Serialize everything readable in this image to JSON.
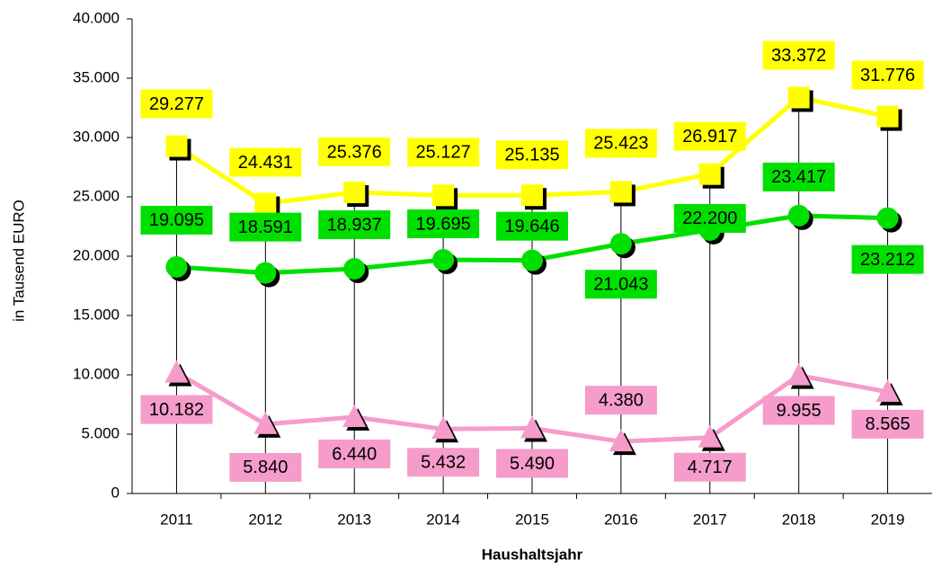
{
  "chart_data": {
    "type": "line",
    "x_label": "Haushaltsjahr",
    "y_label": "in Tausend EURO",
    "categories": [
      "2011",
      "2012",
      "2013",
      "2014",
      "2015",
      "2016",
      "2017",
      "2018",
      "2019"
    ],
    "series": [
      {
        "color": "#ffff00",
        "marker": "square",
        "values": [
          29277,
          24431,
          25376,
          25127,
          25135,
          25423,
          26917,
          33372,
          31776
        ],
        "value_labels": [
          "29.277",
          "24.431",
          "25.376",
          "25.127",
          "25.135",
          "25.423",
          "26.917",
          "33.372",
          "31.776"
        ]
      },
      {
        "color": "#00e000",
        "marker": "circle",
        "values": [
          19095,
          18591,
          18937,
          19695,
          19646,
          21043,
          22200,
          23417,
          23212
        ],
        "value_labels": [
          "19.095",
          "18.591",
          "18.937",
          "19.695",
          "19.646",
          "21.043",
          "22.200",
          "23.417",
          "23.212"
        ]
      },
      {
        "color": "#f59ccb",
        "marker": "triangle",
        "values": [
          10182,
          5840,
          6440,
          5432,
          5490,
          4380,
          4717,
          9955,
          8565
        ],
        "value_labels": [
          "10.182",
          "5.840",
          "6.440",
          "5.432",
          "5.490",
          "4.380",
          "4.717",
          "9.955",
          "8.565"
        ]
      }
    ],
    "ylim": [
      0,
      40000
    ],
    "yticks": [
      0,
      {
        "value": 5000,
        "label": "5.000"
      },
      {
        "value": 10000,
        "label": "10.000"
      },
      {
        "value": 15000,
        "label": "15.000"
      },
      {
        "value": 20000,
        "label": "20.000"
      },
      {
        "value": 25000,
        "label": "25.000"
      },
      {
        "value": 30000,
        "label": "30.000"
      },
      {
        "value": 35000,
        "label": "35.000"
      },
      {
        "value": 40000,
        "label": "40.000"
      }
    ],
    "drop_lines": true
  }
}
